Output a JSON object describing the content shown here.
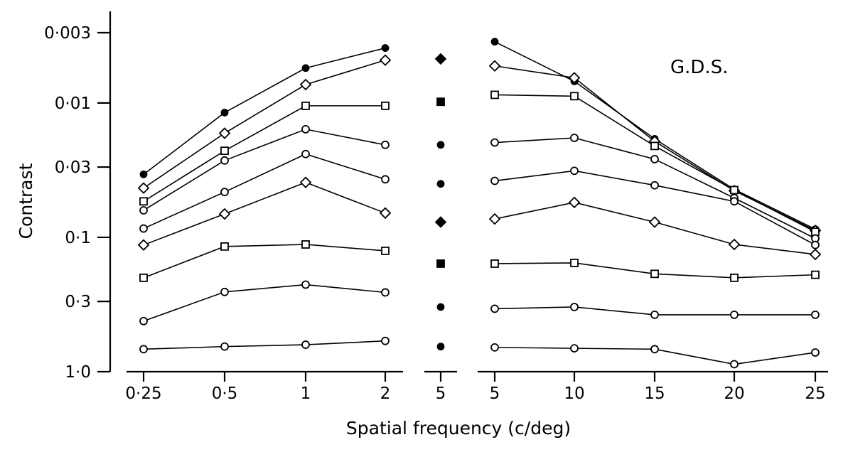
{
  "chart_data": {
    "type": "line",
    "annotation": "G.D.S.",
    "xlabel": "Spatial frequency (c/deg)",
    "ylabel": "Contrast",
    "y_scale": "log",
    "ylim": [
      1.0,
      0.003
    ],
    "y_ticks": [
      "0·003",
      "0·01",
      "0·03",
      "0·1",
      "0·3",
      "1·0"
    ],
    "y_tick_values": [
      0.003,
      0.01,
      0.03,
      0.1,
      0.3,
      1.0
    ],
    "panels": [
      {
        "name": "low",
        "x_tick_labels": [
          "0·25",
          "0·5",
          "1",
          "2"
        ],
        "x": [
          0.25,
          0.5,
          1,
          2
        ],
        "series": [
          {
            "marker": "filled-circle",
            "values": [
              0.034,
              0.0118,
              0.0055,
              0.0039
            ]
          },
          {
            "marker": "open-diamond",
            "values": [
              0.043,
              0.0168,
              0.0073,
              0.0048
            ]
          },
          {
            "marker": "open-square",
            "values": [
              0.054,
              0.0227,
              0.0105,
              0.0105
            ]
          },
          {
            "marker": "open-circle-6",
            "values": [
              0.063,
              0.0268,
              0.0157,
              0.0205
            ]
          },
          {
            "marker": "open-circle-5",
            "values": [
              0.086,
              0.046,
              0.024,
              0.037
            ]
          },
          {
            "marker": "open-diamond-2",
            "values": [
              0.114,
              0.067,
              0.039,
              0.066
            ]
          },
          {
            "marker": "open-square-2",
            "values": [
              0.2,
              0.117,
              0.113,
              0.126
            ]
          },
          {
            "marker": "open-circle-2",
            "values": [
              0.42,
              0.255,
              0.225,
              0.257
            ]
          },
          {
            "marker": "open-circle-1",
            "values": [
              0.68,
              0.65,
              0.63,
              0.59
            ]
          }
        ]
      },
      {
        "name": "middle",
        "x_tick_labels": [
          "5"
        ],
        "x": [
          5
        ],
        "series": [
          {
            "marker": "filled-diamond",
            "values": [
              0.0047
            ]
          },
          {
            "marker": "filled-square",
            "values": [
              0.0098
            ]
          },
          {
            "marker": "filled-circle",
            "values": [
              0.0205
            ]
          },
          {
            "marker": "filled-circle",
            "values": [
              0.04
            ]
          },
          {
            "marker": "filled-diamond",
            "values": [
              0.077
            ]
          },
          {
            "marker": "filled-square",
            "values": [
              0.157
            ]
          },
          {
            "marker": "filled-circle",
            "values": [
              0.33
            ]
          },
          {
            "marker": "filled-circle",
            "values": [
              0.65
            ]
          }
        ]
      },
      {
        "name": "high",
        "x_tick_labels": [
          "5",
          "10",
          "15",
          "20",
          "25"
        ],
        "x": [
          5,
          10,
          15,
          20,
          25
        ],
        "series": [
          {
            "marker": "filled-circle",
            "values": [
              0.0035,
              0.0069,
              0.0185,
              0.044,
              0.087
            ]
          },
          {
            "marker": "open-diamond",
            "values": [
              0.0053,
              0.0065,
              0.0193,
              0.045,
              0.089
            ]
          },
          {
            "marker": "open-square",
            "values": [
              0.0087,
              0.0089,
              0.0209,
              0.0445,
              0.091
            ]
          },
          {
            "marker": "open-circle-6",
            "values": [
              0.0197,
              0.0182,
              0.0262,
              0.051,
              0.102
            ]
          },
          {
            "marker": "open-circle-5",
            "values": [
              0.038,
              0.032,
              0.041,
              0.054,
              0.114
            ]
          },
          {
            "marker": "open-diamond-2",
            "values": [
              0.073,
              0.055,
              0.077,
              0.113,
              0.134
            ]
          },
          {
            "marker": "open-square-2",
            "values": [
              0.157,
              0.155,
              0.187,
              0.2,
              0.19
            ]
          },
          {
            "marker": "open-circle-2",
            "values": [
              0.34,
              0.33,
              0.377,
              0.377,
              0.377
            ]
          },
          {
            "marker": "open-circle-1",
            "values": [
              0.66,
              0.67,
              0.68,
              0.88,
              0.72
            ]
          }
        ]
      }
    ]
  }
}
